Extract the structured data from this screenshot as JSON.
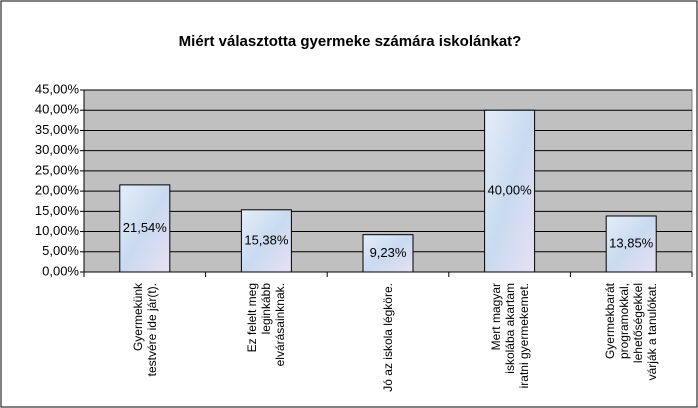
{
  "chart_data": {
    "type": "bar",
    "title": "Miért választotta gyermeke számára iskolánkat?",
    "categories": [
      "Gyermekünk testvére ide jár(t).",
      "Ez felelt meg leginkább elvárásainknak.",
      "Jó az iskola légköre.",
      "Mert magyar iskolába akartam iratni gyermekemet.",
      "Gyermekbarát programokkal, lehetőségekkel várják a tanulókat."
    ],
    "values": [
      21.54,
      15.38,
      9.23,
      40.0,
      13.85
    ],
    "value_labels": [
      "21,54%",
      "15,38%",
      "9,23%",
      "40,00%",
      "13,85%"
    ],
    "color": "#cfe0f3",
    "ylim": [
      0,
      45
    ],
    "yticks": [
      {
        "value": 0,
        "label": "0,00%"
      },
      {
        "value": 5,
        "label": "5,00%"
      },
      {
        "value": 10,
        "label": "10,00%"
      },
      {
        "value": 15,
        "label": "15,00%"
      },
      {
        "value": 20,
        "label": "20,00%"
      },
      {
        "value": 25,
        "label": "25,00%"
      },
      {
        "value": 30,
        "label": "30,00%"
      },
      {
        "value": 35,
        "label": "35,00%"
      },
      {
        "value": 40,
        "label": "40,00%"
      },
      {
        "value": 45,
        "label": "45,00%"
      }
    ],
    "grid": true
  }
}
